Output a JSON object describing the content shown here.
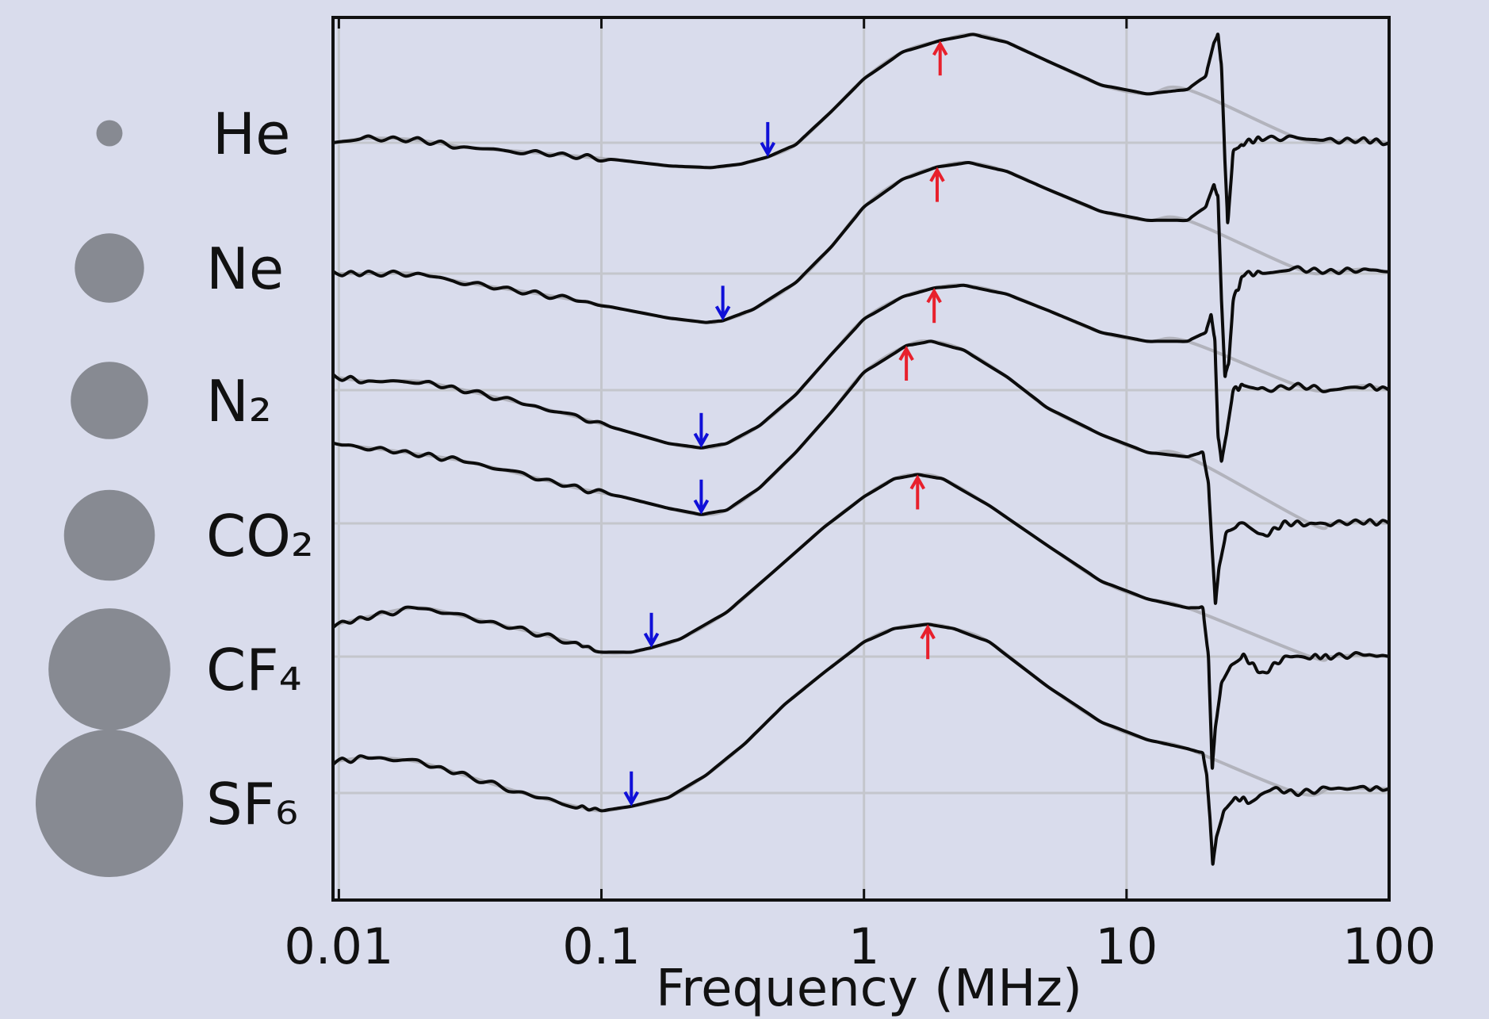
{
  "chart_data": {
    "type": "line",
    "title": "",
    "xlabel": "Frequency (MHz)",
    "ylabel": "",
    "x_scale": "log",
    "xlim": [
      0.0095,
      100
    ],
    "x_ticks": [
      {
        "value": 0.01,
        "label": "0.01"
      },
      {
        "value": 0.1,
        "label": "0.1"
      },
      {
        "value": 1,
        "label": "1"
      },
      {
        "value": 10,
        "label": "10"
      },
      {
        "value": 100,
        "label": "100"
      }
    ],
    "grid": true,
    "marker_colors": {
      "minimum": "#1010d8",
      "maximum": "#e8202c"
    },
    "legend": {
      "placement": "left",
      "marker": "circle",
      "marker_color": "#878a92"
    },
    "series": [
      {
        "name": "He",
        "marker_size": 0.1,
        "baseline": 0.0,
        "min_marker": 0.43,
        "max_marker": 1.95,
        "points": [
          [
            0.0095,
            0.0
          ],
          [
            0.013,
            0.05
          ],
          [
            0.02,
            0.03
          ],
          [
            0.03,
            -0.05
          ],
          [
            0.05,
            -0.1
          ],
          [
            0.08,
            -0.15
          ],
          [
            0.12,
            -0.2
          ],
          [
            0.18,
            -0.26
          ],
          [
            0.26,
            -0.28
          ],
          [
            0.34,
            -0.24
          ],
          [
            0.43,
            -0.16
          ],
          [
            0.55,
            -0.02
          ],
          [
            0.75,
            0.35
          ],
          [
            1.0,
            0.72
          ],
          [
            1.4,
            1.02
          ],
          [
            1.95,
            1.15
          ],
          [
            2.6,
            1.22
          ],
          [
            3.5,
            1.13
          ],
          [
            5.0,
            0.92
          ],
          [
            8.0,
            0.65
          ],
          [
            12.0,
            0.55
          ],
          [
            17.0,
            0.6
          ],
          [
            20.0,
            0.75
          ],
          [
            21.5,
            1.12
          ],
          [
            22.3,
            1.22
          ],
          [
            23.0,
            0.85
          ],
          [
            23.7,
            -0.2
          ],
          [
            24.3,
            -0.9
          ],
          [
            25.5,
            -0.1
          ],
          [
            28.0,
            0.0
          ],
          [
            33.0,
            0.05
          ],
          [
            45.0,
            0.05
          ],
          [
            60.0,
            0.02
          ],
          [
            80.0,
            0.03
          ],
          [
            100.0,
            0.0
          ]
        ]
      },
      {
        "name": "Ne",
        "marker_size": 0.42,
        "baseline": 0.0,
        "min_marker": 0.29,
        "max_marker": 1.9,
        "points": [
          [
            0.0095,
            0.0
          ],
          [
            0.013,
            0.0
          ],
          [
            0.02,
            0.0
          ],
          [
            0.03,
            -0.1
          ],
          [
            0.05,
            -0.2
          ],
          [
            0.08,
            -0.3
          ],
          [
            0.12,
            -0.4
          ],
          [
            0.18,
            -0.5
          ],
          [
            0.25,
            -0.55
          ],
          [
            0.29,
            -0.53
          ],
          [
            0.38,
            -0.4
          ],
          [
            0.55,
            -0.1
          ],
          [
            0.75,
            0.3
          ],
          [
            1.0,
            0.75
          ],
          [
            1.4,
            1.06
          ],
          [
            1.9,
            1.2
          ],
          [
            2.5,
            1.25
          ],
          [
            3.5,
            1.15
          ],
          [
            5.0,
            0.95
          ],
          [
            8.0,
            0.7
          ],
          [
            12.0,
            0.6
          ],
          [
            17.0,
            0.6
          ],
          [
            20.0,
            0.75
          ],
          [
            21.5,
            1.0
          ],
          [
            22.3,
            0.85
          ],
          [
            23.0,
            -0.3
          ],
          [
            23.7,
            -1.15
          ],
          [
            24.5,
            -1.0
          ],
          [
            25.5,
            -0.3
          ],
          [
            28.0,
            0.0
          ],
          [
            33.0,
            0.0
          ],
          [
            45.0,
            0.05
          ],
          [
            60.0,
            0.02
          ],
          [
            80.0,
            0.05
          ],
          [
            100.0,
            0.02
          ]
        ]
      },
      {
        "name": "N₂",
        "marker_size": 0.48,
        "baseline": 0.0,
        "min_marker": 0.24,
        "max_marker": 1.85,
        "points": [
          [
            0.0095,
            0.15
          ],
          [
            0.013,
            0.1
          ],
          [
            0.02,
            0.1
          ],
          [
            0.03,
            0.0
          ],
          [
            0.05,
            -0.15
          ],
          [
            0.08,
            -0.3
          ],
          [
            0.12,
            -0.45
          ],
          [
            0.18,
            -0.6
          ],
          [
            0.24,
            -0.65
          ],
          [
            0.3,
            -0.6
          ],
          [
            0.4,
            -0.4
          ],
          [
            0.55,
            -0.05
          ],
          [
            0.75,
            0.4
          ],
          [
            1.0,
            0.8
          ],
          [
            1.4,
            1.05
          ],
          [
            1.85,
            1.15
          ],
          [
            2.4,
            1.18
          ],
          [
            3.5,
            1.08
          ],
          [
            5.0,
            0.9
          ],
          [
            8.0,
            0.65
          ],
          [
            12.0,
            0.55
          ],
          [
            17.0,
            0.55
          ],
          [
            20.0,
            0.65
          ],
          [
            21.0,
            0.85
          ],
          [
            21.7,
            0.55
          ],
          [
            22.3,
            -0.5
          ],
          [
            23.0,
            -0.8
          ],
          [
            24.0,
            -0.5
          ],
          [
            25.5,
            0.0
          ],
          [
            28.0,
            0.05
          ],
          [
            33.0,
            0.0
          ],
          [
            45.0,
            0.05
          ],
          [
            60.0,
            0.0
          ],
          [
            80.0,
            0.05
          ],
          [
            100.0,
            0.0
          ]
        ]
      },
      {
        "name": "CO₂",
        "marker_size": 0.58,
        "baseline": 0.0,
        "min_marker": 0.24,
        "max_marker": 1.45,
        "points": [
          [
            0.0095,
            0.9
          ],
          [
            0.013,
            0.85
          ],
          [
            0.02,
            0.78
          ],
          [
            0.03,
            0.7
          ],
          [
            0.05,
            0.55
          ],
          [
            0.08,
            0.4
          ],
          [
            0.12,
            0.3
          ],
          [
            0.18,
            0.17
          ],
          [
            0.24,
            0.1
          ],
          [
            0.3,
            0.15
          ],
          [
            0.4,
            0.4
          ],
          [
            0.55,
            0.8
          ],
          [
            0.75,
            1.25
          ],
          [
            1.0,
            1.7
          ],
          [
            1.45,
            2.0
          ],
          [
            1.8,
            2.05
          ],
          [
            2.4,
            1.95
          ],
          [
            3.5,
            1.65
          ],
          [
            5.0,
            1.3
          ],
          [
            8.0,
            1.0
          ],
          [
            12.0,
            0.8
          ],
          [
            17.0,
            0.75
          ],
          [
            19.5,
            0.8
          ],
          [
            20.5,
            0.45
          ],
          [
            21.2,
            -0.3
          ],
          [
            21.8,
            -0.9
          ],
          [
            22.5,
            -0.5
          ],
          [
            24.0,
            -0.1
          ],
          [
            28.0,
            0.0
          ],
          [
            33.0,
            -0.15
          ],
          [
            40.0,
            0.0
          ],
          [
            50.0,
            0.0
          ],
          [
            60.0,
            0.0
          ],
          [
            80.0,
            0.02
          ],
          [
            100.0,
            0.0
          ]
        ]
      },
      {
        "name": "CF₄",
        "marker_size": 0.81,
        "baseline": 0.0,
        "min_marker": 0.155,
        "max_marker": 1.6,
        "points": [
          [
            0.0095,
            0.35
          ],
          [
            0.013,
            0.45
          ],
          [
            0.02,
            0.55
          ],
          [
            0.03,
            0.45
          ],
          [
            0.05,
            0.3
          ],
          [
            0.08,
            0.15
          ],
          [
            0.1,
            0.05
          ],
          [
            0.13,
            0.05
          ],
          [
            0.155,
            0.1
          ],
          [
            0.2,
            0.2
          ],
          [
            0.3,
            0.5
          ],
          [
            0.45,
            0.95
          ],
          [
            0.7,
            1.45
          ],
          [
            1.0,
            1.8
          ],
          [
            1.3,
            2.0
          ],
          [
            1.6,
            2.05
          ],
          [
            2.0,
            2.0
          ],
          [
            3.0,
            1.7
          ],
          [
            5.0,
            1.25
          ],
          [
            8.0,
            0.85
          ],
          [
            12.0,
            0.65
          ],
          [
            17.0,
            0.55
          ],
          [
            19.5,
            0.55
          ],
          [
            20.5,
            0.0
          ],
          [
            21.2,
            -1.25
          ],
          [
            21.8,
            -0.8
          ],
          [
            23.0,
            -0.3
          ],
          [
            25.0,
            -0.1
          ],
          [
            28.0,
            0.0
          ],
          [
            33.0,
            -0.2
          ],
          [
            40.0,
            0.0
          ],
          [
            50.0,
            0.0
          ],
          [
            60.0,
            0.0
          ],
          [
            80.0,
            0.02
          ],
          [
            100.0,
            0.0
          ]
        ]
      },
      {
        "name": "SF₆",
        "marker_size": 1.0,
        "baseline": 0.0,
        "min_marker": 0.13,
        "max_marker": 1.75,
        "points": [
          [
            0.0095,
            0.35
          ],
          [
            0.013,
            0.4
          ],
          [
            0.02,
            0.35
          ],
          [
            0.03,
            0.2
          ],
          [
            0.05,
            0.0
          ],
          [
            0.08,
            -0.15
          ],
          [
            0.1,
            -0.2
          ],
          [
            0.13,
            -0.15
          ],
          [
            0.18,
            -0.05
          ],
          [
            0.25,
            0.2
          ],
          [
            0.35,
            0.55
          ],
          [
            0.5,
            1.0
          ],
          [
            0.7,
            1.35
          ],
          [
            1.0,
            1.7
          ],
          [
            1.3,
            1.85
          ],
          [
            1.75,
            1.9
          ],
          [
            2.2,
            1.85
          ],
          [
            3.0,
            1.7
          ],
          [
            5.0,
            1.2
          ],
          [
            8.0,
            0.8
          ],
          [
            12.0,
            0.6
          ],
          [
            17.0,
            0.5
          ],
          [
            19.5,
            0.45
          ],
          [
            20.2,
            0.2
          ],
          [
            20.8,
            -0.3
          ],
          [
            21.3,
            -0.8
          ],
          [
            22.0,
            -0.5
          ],
          [
            23.5,
            -0.2
          ],
          [
            26.0,
            -0.05
          ],
          [
            30.0,
            -0.1
          ],
          [
            35.0,
            0.05
          ],
          [
            45.0,
            0.0
          ],
          [
            60.0,
            0.05
          ],
          [
            80.0,
            0.05
          ],
          [
            100.0,
            0.05
          ]
        ]
      }
    ],
    "sf6_extra": {
      "name": "SF₆",
      "min_marker": 0.097
    }
  }
}
